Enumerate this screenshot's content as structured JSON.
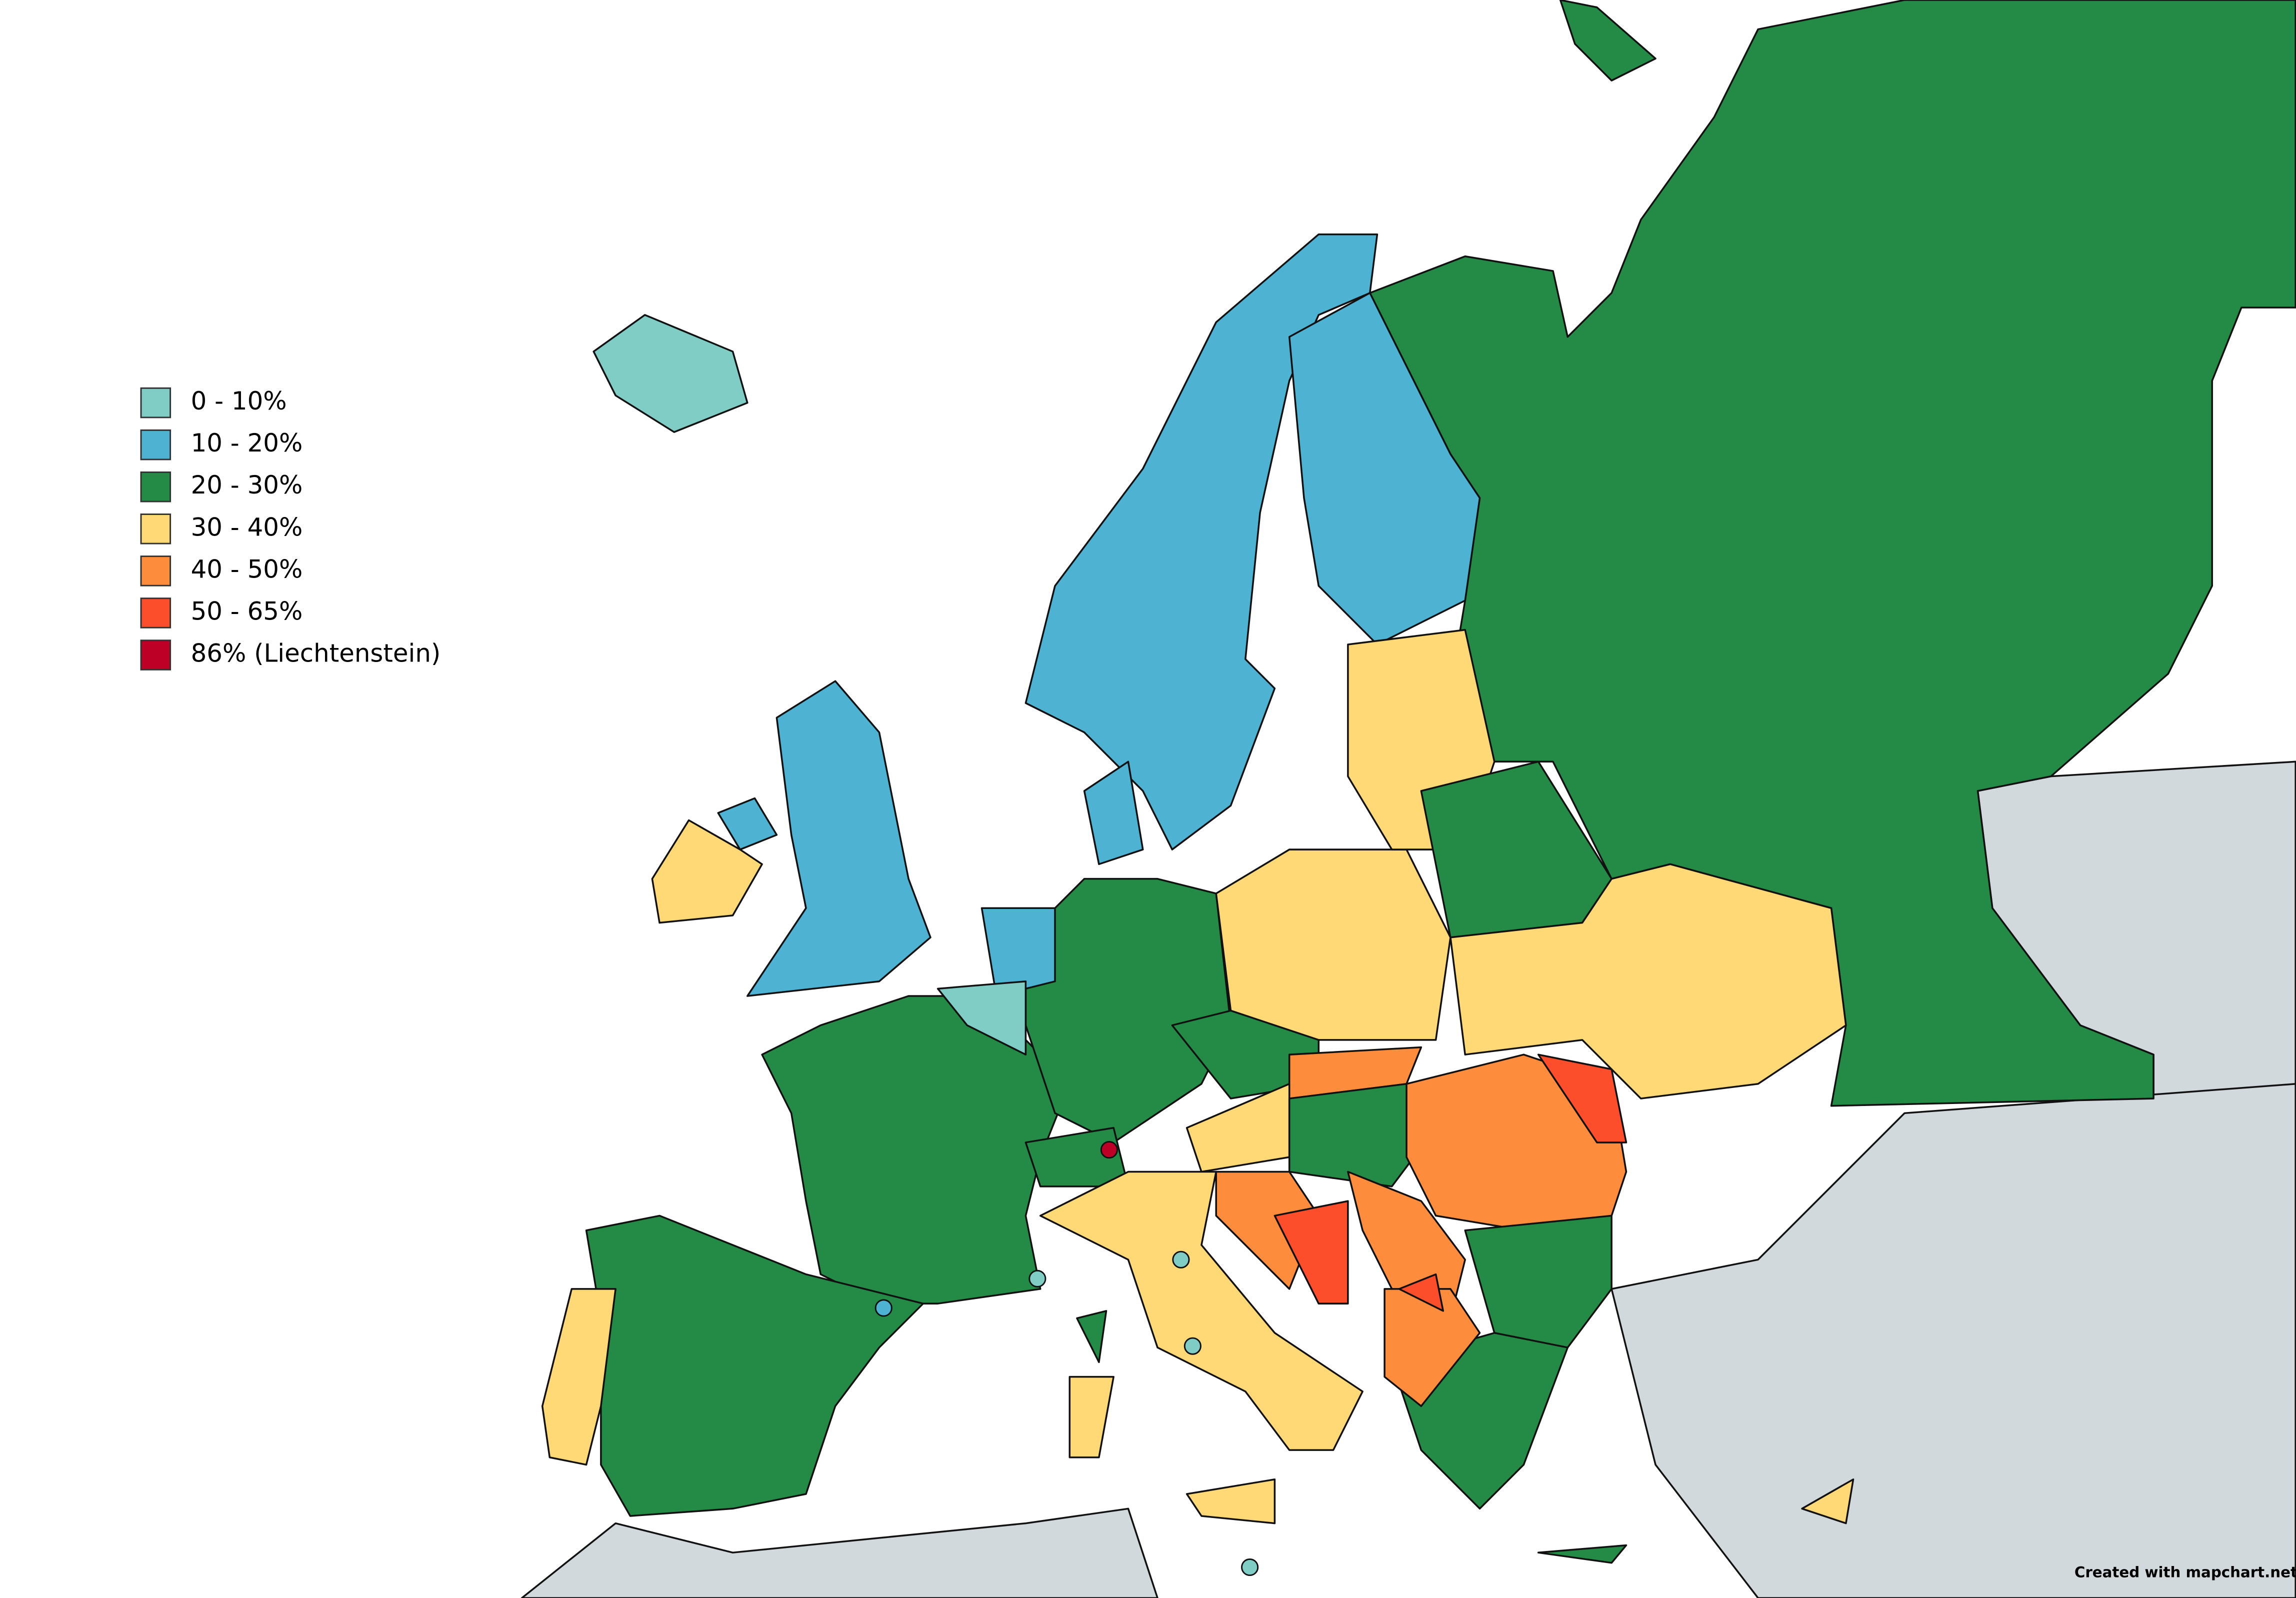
{
  "legend": {
    "items": [
      {
        "label": "0 - 10%",
        "color": "#7fcdc4"
      },
      {
        "label": "10 - 20%",
        "color": "#4eb3d3"
      },
      {
        "label": "20 - 30%",
        "color": "#238b45"
      },
      {
        "label": "30 - 40%",
        "color": "#fed976"
      },
      {
        "label": "40 - 50%",
        "color": "#fd8d3c"
      },
      {
        "label": "50 - 65%",
        "color": "#fc4e2a"
      },
      {
        "label": "86% (Liechtenstein)",
        "color": "#bd0026"
      }
    ]
  },
  "credit": "Created with mapchart.net"
}
